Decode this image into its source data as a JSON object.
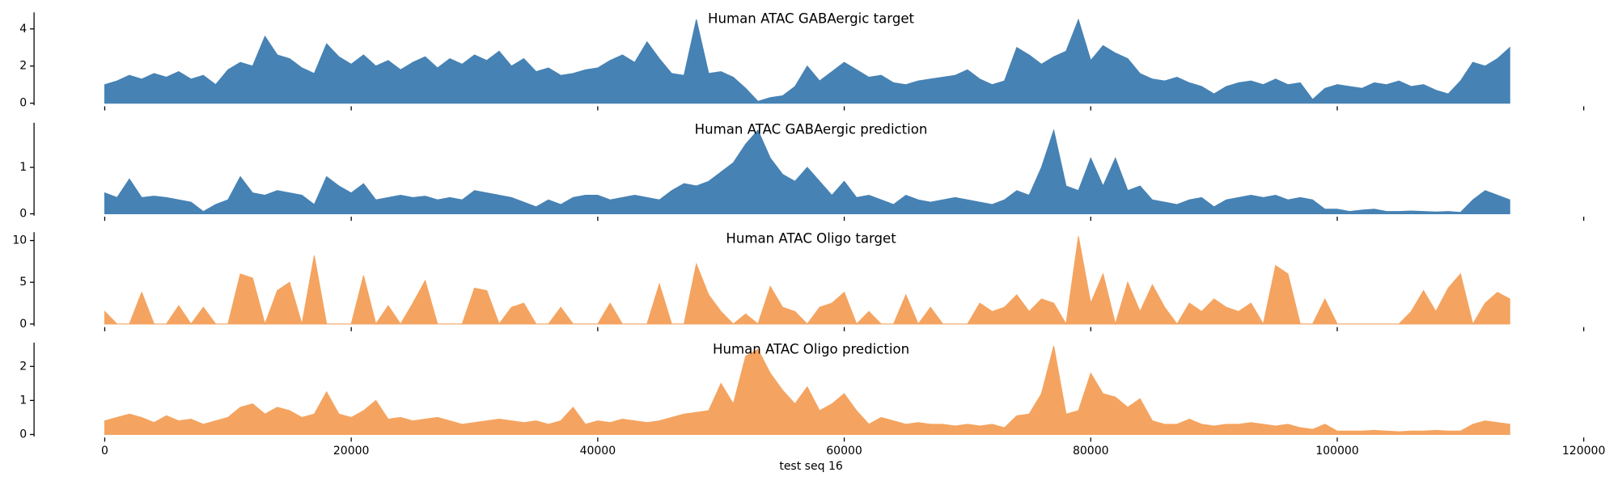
{
  "chart_data": [
    {
      "type": "area",
      "title": "Human ATAC GABAergic target",
      "color": "#4682b4",
      "x": [
        0,
        1000,
        2000,
        3000,
        4000,
        5000,
        6000,
        7000,
        8000,
        9000,
        10000,
        11000,
        12000,
        13000,
        14000,
        15000,
        16000,
        17000,
        18000,
        19000,
        20000,
        21000,
        22000,
        23000,
        24000,
        25000,
        26000,
        27000,
        28000,
        29000,
        30000,
        31000,
        32000,
        33000,
        34000,
        35000,
        36000,
        37000,
        38000,
        39000,
        40000,
        41000,
        42000,
        43000,
        44000,
        45000,
        46000,
        47000,
        48000,
        49000,
        50000,
        51000,
        52000,
        53000,
        54000,
        55000,
        56000,
        57000,
        58000,
        59000,
        60000,
        61000,
        62000,
        63000,
        64000,
        65000,
        66000,
        67000,
        68000,
        69000,
        70000,
        71000,
        72000,
        73000,
        74000,
        75000,
        76000,
        77000,
        78000,
        79000,
        80000,
        81000,
        82000,
        83000,
        84000,
        85000,
        86000,
        87000,
        88000,
        89000,
        90000,
        91000,
        92000,
        93000,
        94000,
        95000,
        96000,
        97000,
        98000,
        99000,
        100000,
        101000,
        102000,
        103000,
        104000,
        105000,
        106000,
        107000,
        108000,
        109000,
        110000,
        111000,
        112000,
        113000,
        114000
      ],
      "values": [
        1.0,
        1.2,
        1.5,
        1.3,
        1.6,
        1.4,
        1.7,
        1.3,
        1.5,
        1.0,
        1.8,
        2.2,
        2.0,
        3.6,
        2.6,
        2.4,
        1.9,
        1.6,
        3.2,
        2.5,
        2.1,
        2.6,
        2.0,
        2.3,
        1.8,
        2.2,
        2.5,
        1.9,
        2.4,
        2.1,
        2.6,
        2.3,
        2.8,
        2.0,
        2.4,
        1.7,
        1.9,
        1.5,
        1.6,
        1.8,
        1.9,
        2.3,
        2.6,
        2.2,
        3.3,
        2.4,
        1.6,
        1.5,
        4.5,
        1.6,
        1.7,
        1.4,
        0.8,
        0.1,
        0.3,
        0.4,
        0.9,
        2.0,
        1.2,
        1.7,
        2.2,
        1.8,
        1.4,
        1.5,
        1.1,
        1.0,
        1.2,
        1.3,
        1.4,
        1.5,
        1.8,
        1.3,
        1.0,
        1.2,
        3.0,
        2.6,
        2.1,
        2.5,
        2.8,
        4.5,
        2.3,
        3.1,
        2.7,
        2.4,
        1.6,
        1.3,
        1.2,
        1.4,
        1.1,
        0.9,
        0.5,
        0.9,
        1.1,
        1.2,
        1.0,
        1.3,
        1.0,
        1.1,
        0.2,
        0.8,
        1.0,
        0.9,
        0.8,
        1.1,
        1.0,
        1.2,
        0.9,
        1.0,
        0.7,
        0.5,
        1.2,
        2.2,
        2.0,
        2.4,
        3.0
      ],
      "xlim": [
        -5735,
        120435
      ],
      "xticks": [
        0,
        20000,
        40000,
        60000,
        80000,
        100000,
        120000
      ],
      "ylim": [
        -0.11,
        4.89
      ],
      "yticks": [
        0,
        2,
        4
      ]
    },
    {
      "type": "area",
      "title": "Human ATAC GABAergic prediction",
      "color": "#4682b4",
      "x": [
        0,
        1000,
        2000,
        3000,
        4000,
        5000,
        6000,
        7000,
        8000,
        9000,
        10000,
        11000,
        12000,
        13000,
        14000,
        15000,
        16000,
        17000,
        18000,
        19000,
        20000,
        21000,
        22000,
        23000,
        24000,
        25000,
        26000,
        27000,
        28000,
        29000,
        30000,
        31000,
        32000,
        33000,
        34000,
        35000,
        36000,
        37000,
        38000,
        39000,
        40000,
        41000,
        42000,
        43000,
        44000,
        45000,
        46000,
        47000,
        48000,
        49000,
        50000,
        51000,
        52000,
        53000,
        54000,
        55000,
        56000,
        57000,
        58000,
        59000,
        60000,
        61000,
        62000,
        63000,
        64000,
        65000,
        66000,
        67000,
        68000,
        69000,
        70000,
        71000,
        72000,
        73000,
        74000,
        75000,
        76000,
        77000,
        78000,
        79000,
        80000,
        81000,
        82000,
        83000,
        84000,
        85000,
        86000,
        87000,
        88000,
        89000,
        90000,
        91000,
        92000,
        93000,
        94000,
        95000,
        96000,
        97000,
        98000,
        99000,
        100000,
        101000,
        102000,
        103000,
        104000,
        105000,
        106000,
        107000,
        108000,
        109000,
        110000,
        111000,
        112000,
        113000,
        114000
      ],
      "values": [
        0.45,
        0.35,
        0.75,
        0.35,
        0.38,
        0.35,
        0.3,
        0.25,
        0.05,
        0.2,
        0.3,
        0.8,
        0.45,
        0.4,
        0.5,
        0.45,
        0.4,
        0.2,
        0.8,
        0.6,
        0.45,
        0.65,
        0.3,
        0.35,
        0.4,
        0.35,
        0.38,
        0.3,
        0.35,
        0.3,
        0.5,
        0.45,
        0.4,
        0.35,
        0.25,
        0.15,
        0.3,
        0.2,
        0.35,
        0.4,
        0.4,
        0.3,
        0.35,
        0.4,
        0.35,
        0.3,
        0.5,
        0.65,
        0.6,
        0.7,
        0.9,
        1.1,
        1.5,
        1.8,
        1.2,
        0.85,
        0.7,
        1.0,
        0.7,
        0.4,
        0.7,
        0.35,
        0.4,
        0.3,
        0.2,
        0.4,
        0.3,
        0.25,
        0.3,
        0.35,
        0.3,
        0.25,
        0.2,
        0.3,
        0.5,
        0.4,
        1.0,
        1.8,
        0.6,
        0.5,
        1.2,
        0.6,
        1.2,
        0.5,
        0.6,
        0.3,
        0.25,
        0.2,
        0.3,
        0.35,
        0.15,
        0.3,
        0.35,
        0.4,
        0.35,
        0.4,
        0.3,
        0.35,
        0.3,
        0.1,
        0.1,
        0.05,
        0.08,
        0.1,
        0.05,
        0.05,
        0.06,
        0.05,
        0.04,
        0.05,
        0.03,
        0.3,
        0.5,
        0.4,
        0.3
      ],
      "xlim": [
        -5735,
        120435
      ],
      "xticks": [
        0,
        20000,
        40000,
        60000,
        80000,
        100000,
        120000
      ],
      "ylim": [
        -0.04,
        1.96
      ],
      "yticks": [
        0,
        1
      ]
    },
    {
      "type": "area",
      "title": "Human ATAC Oligo target",
      "color": "#f4a460",
      "x": [
        0,
        1000,
        2000,
        3000,
        4000,
        5000,
        6000,
        7000,
        8000,
        9000,
        10000,
        11000,
        12000,
        13000,
        14000,
        15000,
        16000,
        17000,
        18000,
        19000,
        20000,
        21000,
        22000,
        23000,
        24000,
        25000,
        26000,
        27000,
        28000,
        29000,
        30000,
        31000,
        32000,
        33000,
        34000,
        35000,
        36000,
        37000,
        38000,
        39000,
        40000,
        41000,
        42000,
        43000,
        44000,
        45000,
        46000,
        47000,
        48000,
        49000,
        50000,
        51000,
        52000,
        53000,
        54000,
        55000,
        56000,
        57000,
        58000,
        59000,
        60000,
        61000,
        62000,
        63000,
        64000,
        65000,
        66000,
        67000,
        68000,
        69000,
        70000,
        71000,
        72000,
        73000,
        74000,
        75000,
        76000,
        77000,
        78000,
        79000,
        80000,
        81000,
        82000,
        83000,
        84000,
        85000,
        86000,
        87000,
        88000,
        89000,
        90000,
        91000,
        92000,
        93000,
        94000,
        95000,
        96000,
        97000,
        98000,
        99000,
        100000,
        101000,
        102000,
        103000,
        104000,
        105000,
        106000,
        107000,
        108000,
        109000,
        110000,
        111000,
        112000,
        113000,
        114000
      ],
      "values": [
        1.5,
        0,
        0,
        3.8,
        0,
        0,
        2.2,
        0,
        2.0,
        0,
        0,
        6.0,
        5.5,
        0,
        4.0,
        5.0,
        0,
        8.2,
        0,
        0,
        0,
        5.8,
        0,
        2.2,
        0,
        2.5,
        5.2,
        0,
        0,
        0,
        4.3,
        4.0,
        0,
        2.0,
        2.5,
        0,
        0,
        2.0,
        0,
        0,
        0,
        2.5,
        0,
        0,
        0,
        4.8,
        0,
        0,
        7.2,
        3.5,
        1.5,
        0,
        1.2,
        0,
        4.5,
        2.0,
        1.5,
        0,
        2.0,
        2.5,
        3.8,
        0,
        1.5,
        0,
        0,
        3.5,
        0,
        2.0,
        0,
        0,
        0,
        2.5,
        1.5,
        2.0,
        3.5,
        1.5,
        3.0,
        2.5,
        0,
        10.5,
        2.5,
        6.0,
        0,
        5.0,
        1.5,
        4.7,
        2.0,
        0,
        2.5,
        1.5,
        3.0,
        2.0,
        1.5,
        2.5,
        0,
        7.0,
        6.0,
        0,
        0,
        3.0,
        0,
        0,
        0,
        0,
        0,
        0,
        1.5,
        4.0,
        1.5,
        4.3,
        6.0,
        0,
        2.5,
        3.8,
        3.0
      ],
      "xlim": [
        -5735,
        120435
      ],
      "xticks": [
        0,
        20000,
        40000,
        60000,
        80000,
        100000,
        120000
      ],
      "ylim": [
        -0.25,
        11
      ],
      "yticks": [
        0,
        5,
        10
      ]
    },
    {
      "type": "area",
      "title": "Human ATAC Oligo prediction",
      "color": "#f4a460",
      "xlabel": "test seq 16",
      "x": [
        0,
        1000,
        2000,
        3000,
        4000,
        5000,
        6000,
        7000,
        8000,
        9000,
        10000,
        11000,
        12000,
        13000,
        14000,
        15000,
        16000,
        17000,
        18000,
        19000,
        20000,
        21000,
        22000,
        23000,
        24000,
        25000,
        26000,
        27000,
        28000,
        29000,
        30000,
        31000,
        32000,
        33000,
        34000,
        35000,
        36000,
        37000,
        38000,
        39000,
        40000,
        41000,
        42000,
        43000,
        44000,
        45000,
        46000,
        47000,
        48000,
        49000,
        50000,
        51000,
        52000,
        53000,
        54000,
        55000,
        56000,
        57000,
        58000,
        59000,
        60000,
        61000,
        62000,
        63000,
        64000,
        65000,
        66000,
        67000,
        68000,
        69000,
        70000,
        71000,
        72000,
        73000,
        74000,
        75000,
        76000,
        77000,
        78000,
        79000,
        80000,
        81000,
        82000,
        83000,
        84000,
        85000,
        86000,
        87000,
        88000,
        89000,
        90000,
        91000,
        92000,
        93000,
        94000,
        95000,
        96000,
        97000,
        98000,
        99000,
        100000,
        101000,
        102000,
        103000,
        104000,
        105000,
        106000,
        107000,
        108000,
        109000,
        110000,
        111000,
        112000,
        113000,
        114000
      ],
      "values": [
        0.4,
        0.5,
        0.6,
        0.5,
        0.35,
        0.55,
        0.4,
        0.45,
        0.3,
        0.4,
        0.5,
        0.8,
        0.9,
        0.6,
        0.8,
        0.7,
        0.5,
        0.6,
        1.25,
        0.6,
        0.5,
        0.7,
        1.0,
        0.45,
        0.5,
        0.4,
        0.45,
        0.5,
        0.4,
        0.3,
        0.35,
        0.4,
        0.45,
        0.4,
        0.35,
        0.4,
        0.3,
        0.4,
        0.8,
        0.3,
        0.4,
        0.35,
        0.45,
        0.4,
        0.35,
        0.4,
        0.5,
        0.6,
        0.65,
        0.7,
        1.5,
        0.9,
        2.3,
        2.5,
        1.8,
        1.3,
        0.9,
        1.4,
        0.7,
        0.9,
        1.2,
        0.7,
        0.3,
        0.5,
        0.4,
        0.3,
        0.35,
        0.3,
        0.3,
        0.25,
        0.3,
        0.25,
        0.3,
        0.2,
        0.55,
        0.6,
        1.2,
        2.6,
        0.6,
        0.7,
        1.8,
        1.2,
        1.1,
        0.8,
        1.05,
        0.4,
        0.3,
        0.3,
        0.45,
        0.3,
        0.25,
        0.3,
        0.3,
        0.35,
        0.3,
        0.25,
        0.3,
        0.2,
        0.15,
        0.3,
        0.1,
        0.1,
        0.1,
        0.12,
        0.1,
        0.08,
        0.1,
        0.1,
        0.12,
        0.1,
        0.1,
        0.3,
        0.4,
        0.35,
        0.3
      ],
      "xlim": [
        -5735,
        120435
      ],
      "xticks": [
        0,
        20000,
        40000,
        60000,
        80000,
        100000,
        120000
      ],
      "ylim": [
        -0.06,
        2.7
      ],
      "yticks": [
        0,
        1,
        2
      ]
    }
  ]
}
